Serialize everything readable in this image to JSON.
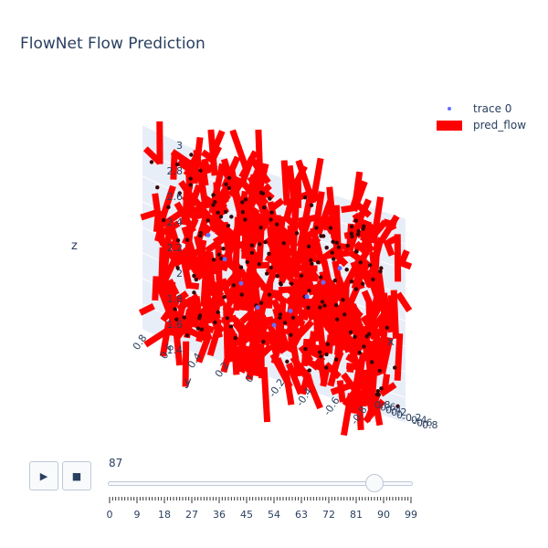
{
  "title": "FlowNet Flow Prediction",
  "chart_data": {
    "type": "scatter3d",
    "title": "FlowNet Flow Prediction",
    "legend_placement": "top-right",
    "axes": {
      "x": {
        "label": "x",
        "range": [
          -0.8,
          0.8
        ],
        "ticks": [
          "0.8",
          "0.6",
          "0.4",
          "0.2",
          "0",
          "-0.2",
          "-0.4",
          "-0.6",
          "-0.8"
        ]
      },
      "y": {
        "label": "y",
        "range": [
          -0.8,
          0.8
        ],
        "ticks": [
          "0.8",
          "0.6",
          "0.4",
          "0.2",
          "0",
          "-0.2",
          "-0.4",
          "-0.6",
          "-0.8"
        ]
      },
      "z": {
        "label": "z",
        "range": [
          1.4,
          3
        ],
        "ticks": [
          "1.4",
          "1.6",
          "1.8",
          "2",
          "2.2",
          "2.4",
          "2.6",
          "2.8",
          "3"
        ]
      }
    },
    "series": [
      {
        "name": "trace 0",
        "mode": "markers",
        "color": "#636efa",
        "points": [
          [
            -0.6,
            0.6,
            2.35
          ],
          [
            -0.45,
            0.45,
            2.2
          ],
          [
            -0.3,
            0.3,
            2.05
          ],
          [
            -0.15,
            0.15,
            1.9
          ],
          [
            0,
            0,
            1.8
          ],
          [
            0.15,
            -0.15,
            1.95
          ],
          [
            0.3,
            -0.3,
            2.1
          ],
          [
            0.45,
            -0.45,
            2.25
          ],
          [
            0.6,
            -0.6,
            2.4
          ]
        ]
      },
      {
        "name": "pred_flow",
        "mode": "lines",
        "color": "#ff0000"
      }
    ]
  },
  "slider": {
    "current_label": "87",
    "current": 87,
    "min": 0,
    "max": 99,
    "tick_labels": [
      "0",
      "9",
      "18",
      "27",
      "36",
      "45",
      "54",
      "63",
      "72",
      "81",
      "90",
      "99"
    ]
  },
  "controls": {
    "play": "▶",
    "stop": "■"
  }
}
